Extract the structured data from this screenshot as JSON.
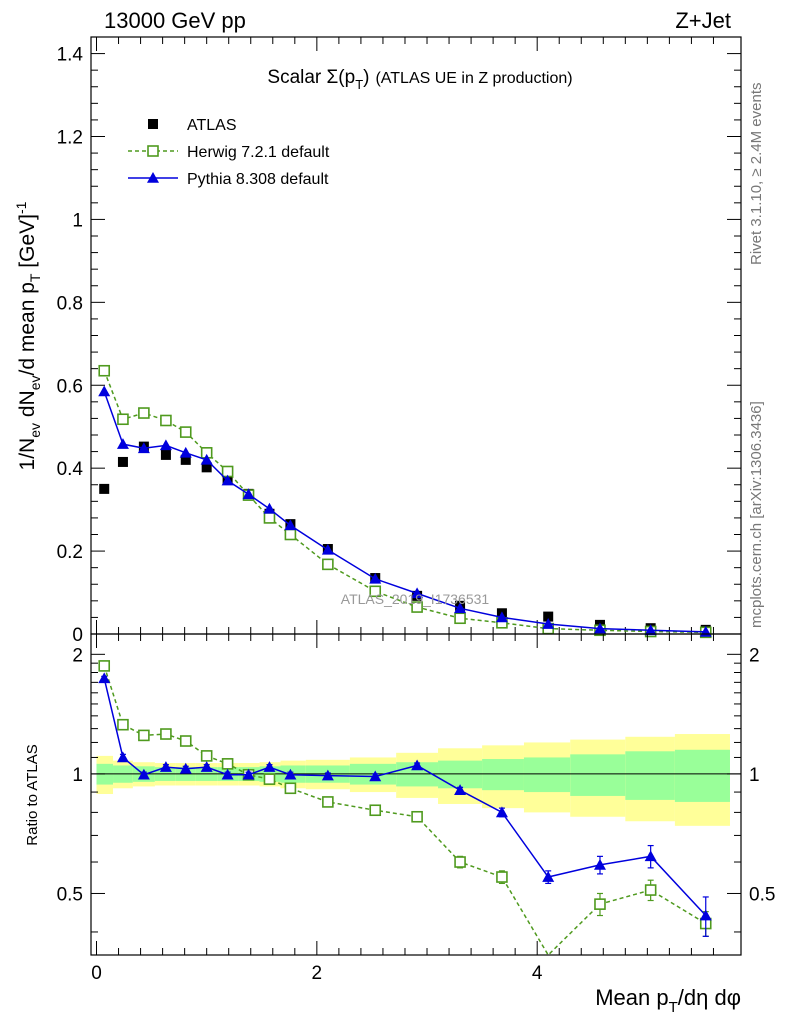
{
  "header": {
    "left": "13000 GeV pp",
    "right": "Z+Jet"
  },
  "side_labels": {
    "rivet": "Rivet 3.1.10, ≥ 2.4M events",
    "mcplots": "mcplots.cern.ch [arXiv:1306.3436]"
  },
  "chart_data": [
    {
      "type": "scatter",
      "panel": "main",
      "title": "Scalar Σ(p_T) (ATLAS UE in Z production)",
      "title_parts": {
        "prefix": "Scalar Σ(p",
        "sub": "T",
        "suffix": ")",
        "note": "(ATLAS UE in Z production)"
      },
      "ylabel": "1/N_ev dN_ev/d mean p_T [GeV]^-1",
      "ylabel_parts": {
        "a": "1/N",
        "a_sub": "ev",
        "b": " dN",
        "b_sub": "ev",
        "c": "/d mean p",
        "c_sub": "T",
        "d": " [GeV]",
        "d_sup": "-1"
      },
      "xlim": [
        -0.05,
        5.85
      ],
      "ylim": [
        0,
        1.44
      ],
      "yticks": [
        0,
        0.2,
        0.4,
        0.6,
        0.8,
        1,
        1.2,
        1.4
      ],
      "ytick_labels": [
        "0",
        "0.2",
        "0.4",
        "0.6",
        "0.8",
        "1",
        "1.2",
        "1.4"
      ],
      "watermark": "ATLAS_2019_I1736531",
      "legend_position": "top-left",
      "x": [
        0.07,
        0.24,
        0.43,
        0.63,
        0.81,
        1.0,
        1.19,
        1.38,
        1.57,
        1.76,
        2.1,
        2.53,
        2.91,
        3.3,
        3.68,
        4.1,
        4.57,
        5.03,
        5.53
      ],
      "series": [
        {
          "name": "ATLAS",
          "marker": "square-filled",
          "color": "#000000",
          "values": [
            0.35,
            0.415,
            0.452,
            0.432,
            0.42,
            0.402,
            0.372,
            0.338,
            0.29,
            0.265,
            0.205,
            0.135,
            0.092,
            0.068,
            0.05,
            0.042,
            0.022,
            0.014,
            0.01
          ]
        },
        {
          "name": "Herwig 7.2.1 default",
          "marker": "square-open",
          "line": "dashed",
          "color": "#4f9a1e",
          "values": [
            0.635,
            0.518,
            0.533,
            0.515,
            0.487,
            0.437,
            0.392,
            0.335,
            0.28,
            0.24,
            0.168,
            0.103,
            0.065,
            0.038,
            0.027,
            0.013,
            0.009,
            0.006,
            0.004
          ]
        },
        {
          "name": "Pythia 8.308 default",
          "marker": "triangle-filled",
          "line": "solid",
          "color": "#0000dd",
          "values": [
            0.585,
            0.458,
            0.448,
            0.455,
            0.437,
            0.42,
            0.37,
            0.337,
            0.302,
            0.262,
            0.203,
            0.133,
            0.098,
            0.062,
            0.04,
            0.024,
            0.013,
            0.009,
            0.005
          ]
        }
      ]
    },
    {
      "type": "scatter",
      "panel": "ratio",
      "ylabel": "Ratio to ATLAS",
      "xlabel": "Mean p_T/dη dφ",
      "xlabel_parts": {
        "a": "Mean p",
        "a_sub": "T",
        "b": "/dη dφ"
      },
      "xlim": [
        -0.05,
        5.85
      ],
      "ylim": [
        0.35,
        2.25
      ],
      "xticks": [
        0,
        2,
        4
      ],
      "xtick_labels": [
        "0",
        "2",
        "4"
      ],
      "yticks": [
        0.5,
        1,
        2
      ],
      "ytick_labels": [
        "0.5",
        "1",
        "2"
      ],
      "band_colors": {
        "inner": "#99ff99",
        "outer": "#ffff99"
      },
      "bands": [
        {
          "x0": 0.0,
          "x1": 0.15,
          "stat": 0.06,
          "total": 0.11
        },
        {
          "x0": 0.15,
          "x1": 0.33,
          "stat": 0.05,
          "total": 0.08
        },
        {
          "x0": 0.33,
          "x1": 0.53,
          "stat": 0.045,
          "total": 0.07
        },
        {
          "x0": 0.53,
          "x1": 0.72,
          "stat": 0.04,
          "total": 0.065
        },
        {
          "x0": 0.72,
          "x1": 0.9,
          "stat": 0.04,
          "total": 0.065
        },
        {
          "x0": 0.9,
          "x1": 1.1,
          "stat": 0.04,
          "total": 0.065
        },
        {
          "x0": 1.1,
          "x1": 1.29,
          "stat": 0.04,
          "total": 0.065
        },
        {
          "x0": 1.29,
          "x1": 1.48,
          "stat": 0.04,
          "total": 0.065
        },
        {
          "x0": 1.48,
          "x1": 1.67,
          "stat": 0.045,
          "total": 0.07
        },
        {
          "x0": 1.67,
          "x1": 1.9,
          "stat": 0.05,
          "total": 0.08
        },
        {
          "x0": 1.9,
          "x1": 2.3,
          "stat": 0.05,
          "total": 0.085
        },
        {
          "x0": 2.3,
          "x1": 2.72,
          "stat": 0.06,
          "total": 0.1
        },
        {
          "x0": 2.72,
          "x1": 3.1,
          "stat": 0.07,
          "total": 0.13
        },
        {
          "x0": 3.1,
          "x1": 3.5,
          "stat": 0.08,
          "total": 0.16
        },
        {
          "x0": 3.5,
          "x1": 3.88,
          "stat": 0.09,
          "total": 0.18
        },
        {
          "x0": 3.88,
          "x1": 4.3,
          "stat": 0.1,
          "total": 0.2
        },
        {
          "x0": 4.3,
          "x1": 4.8,
          "stat": 0.12,
          "total": 0.22
        },
        {
          "x0": 4.8,
          "x1": 5.25,
          "stat": 0.14,
          "total": 0.24
        },
        {
          "x0": 5.25,
          "x1": 5.8,
          "stat": 0.15,
          "total": 0.26
        }
      ],
      "x": [
        0.07,
        0.24,
        0.43,
        0.63,
        0.81,
        1.0,
        1.19,
        1.38,
        1.57,
        1.76,
        2.1,
        2.53,
        2.91,
        3.3,
        3.68,
        4.1,
        4.57,
        5.03,
        5.53
      ],
      "series": [
        {
          "name": "Herwig 7.2.1 default",
          "marker": "square-open",
          "line": "dashed",
          "color": "#4f9a1e",
          "values": [
            1.87,
            1.33,
            1.25,
            1.26,
            1.21,
            1.11,
            1.06,
            0.995,
            0.97,
            0.92,
            0.85,
            0.81,
            0.78,
            0.6,
            0.55,
            0.32,
            0.47,
            0.51,
            0.42
          ],
          "errors": [
            0.02,
            0.02,
            0.02,
            0.02,
            0.02,
            0.02,
            0.02,
            0.02,
            0.02,
            0.02,
            0.02,
            0.02,
            0.02,
            0.02,
            0.02,
            0.02,
            0.03,
            0.03,
            0.03
          ]
        },
        {
          "name": "Pythia 8.308 default",
          "marker": "triangle-filled",
          "line": "solid",
          "color": "#0000dd",
          "values": [
            1.74,
            1.1,
            0.995,
            1.04,
            1.03,
            1.04,
            0.995,
            0.995,
            1.04,
            0.995,
            0.99,
            0.985,
            1.05,
            0.91,
            0.8,
            0.55,
            0.59,
            0.62,
            0.44
          ],
          "errors": [
            0.02,
            0.02,
            0.015,
            0.015,
            0.015,
            0.015,
            0.015,
            0.015,
            0.015,
            0.015,
            0.015,
            0.015,
            0.015,
            0.015,
            0.02,
            0.02,
            0.03,
            0.04,
            0.05
          ]
        }
      ]
    }
  ]
}
